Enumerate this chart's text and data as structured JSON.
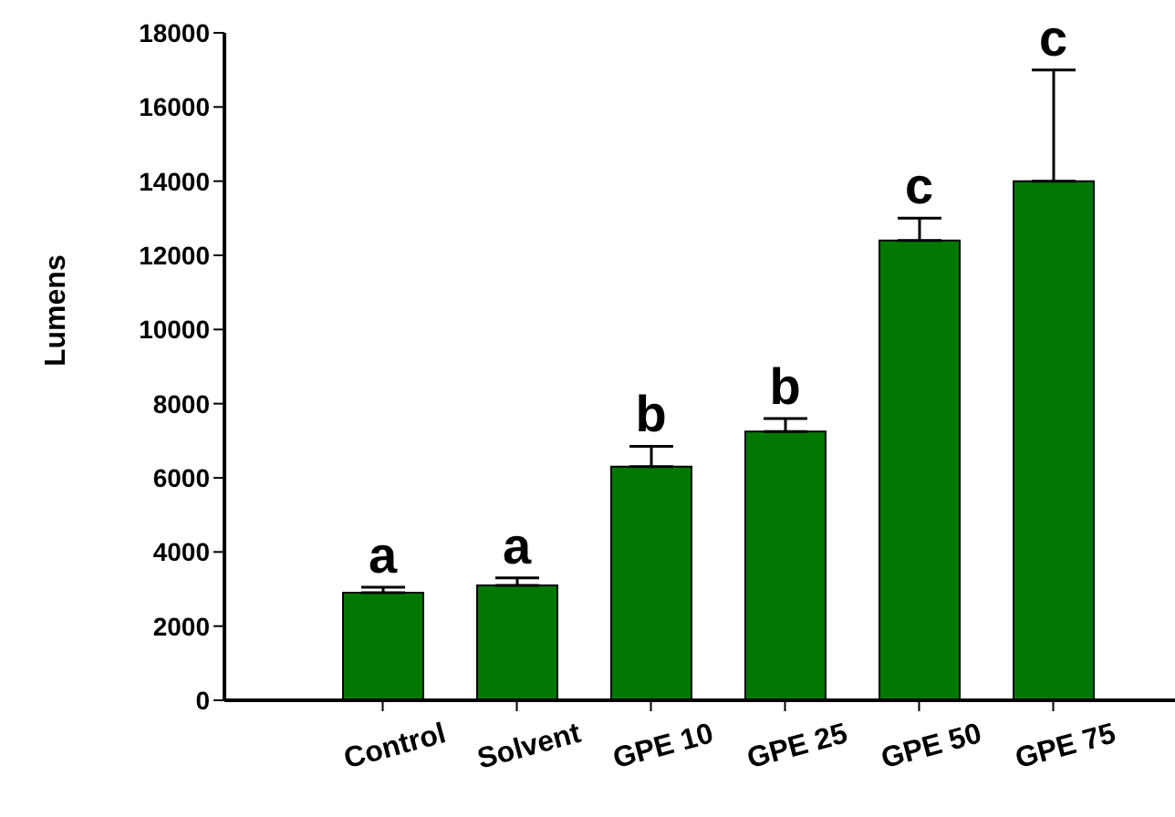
{
  "chart_data": {
    "type": "bar",
    "ylabel": "Lumens",
    "categories": [
      "Control",
      "Solvent",
      "GPE 10",
      "GPE 25",
      "GPE 50",
      "GPE 75"
    ],
    "values": [
      2900,
      3100,
      6300,
      7250,
      12400,
      14000
    ],
    "errors": [
      [
        2900,
        3050
      ],
      [
        3100,
        3300
      ],
      [
        6300,
        6850
      ],
      [
        7250,
        7600
      ],
      [
        12400,
        13000
      ],
      [
        14000,
        17000
      ]
    ],
    "color": "#007800",
    "ylim": [
      0,
      18000
    ],
    "yticks": [
      0,
      2000,
      4000,
      6000,
      8000,
      10000,
      12000,
      14000,
      16000,
      18000
    ],
    "grid": false,
    "legend": false,
    "annotations": [
      {
        "text": "a",
        "x": "Control",
        "y": 3050
      },
      {
        "text": "a",
        "x": "Solvent",
        "y": 3300
      },
      {
        "text": "b",
        "x": "GPE 10",
        "y": 6850
      },
      {
        "text": "b",
        "x": "GPE 25",
        "y": 7600
      },
      {
        "text": "c",
        "x": "GPE 50",
        "y": 13000
      },
      {
        "text": "c",
        "x": "GPE 75",
        "y": 17000
      }
    ]
  }
}
